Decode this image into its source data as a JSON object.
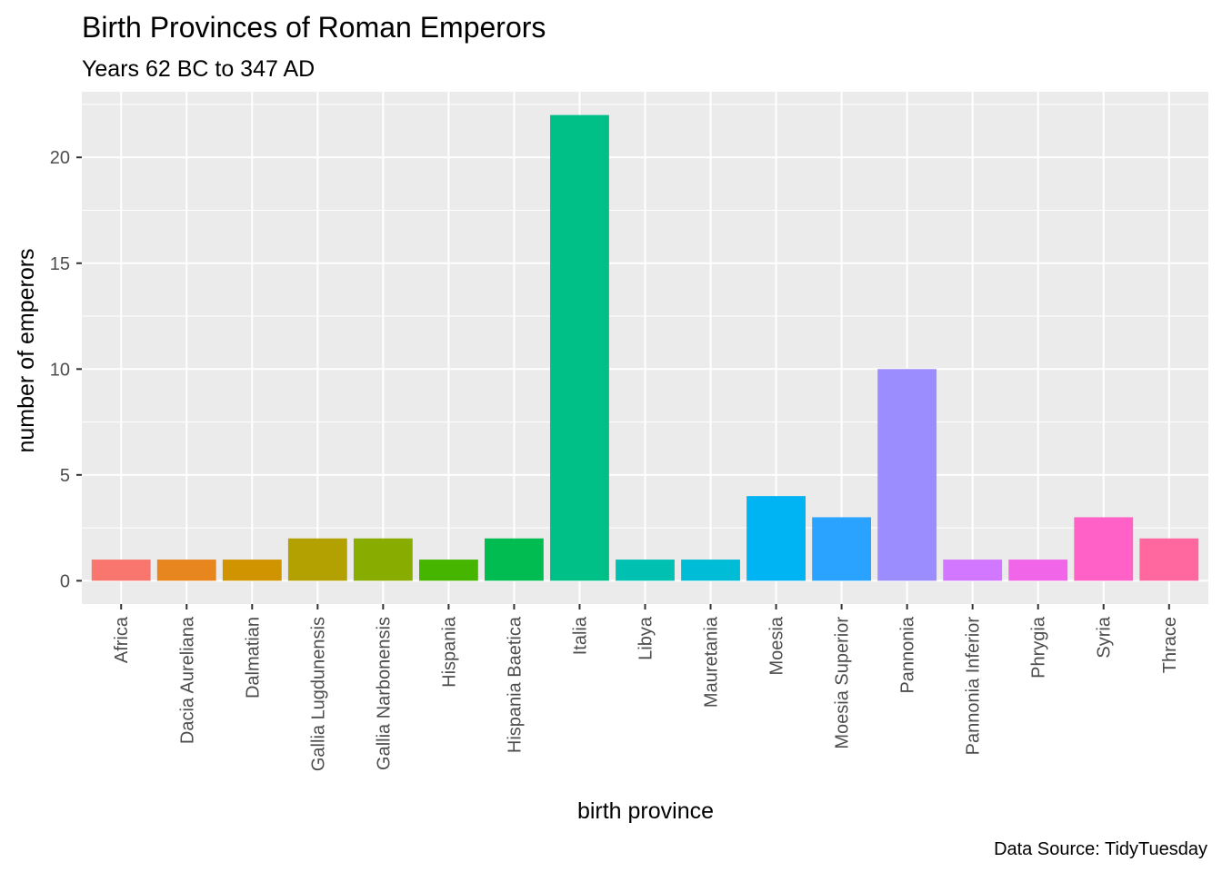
{
  "chart_data": {
    "type": "bar",
    "title": "Birth Provinces of Roman Emperors",
    "subtitle": "Years 62 BC to 347 AD",
    "xlabel": "birth province",
    "ylabel": "number of emperors",
    "caption": "Data Source: TidyTuesday",
    "categories": [
      "Africa",
      "Dacia Aureliana",
      "Dalmatian",
      "Gallia Lugdunensis",
      "Gallia Narbonensis",
      "Hispania",
      "Hispania Baetica",
      "Italia",
      "Libya",
      "Mauretania",
      "Moesia",
      "Moesia Superior",
      "Pannonia",
      "Pannonia Inferior",
      "Phrygia",
      "Syria",
      "Thrace"
    ],
    "values": [
      1,
      1,
      1,
      2,
      2,
      1,
      2,
      22,
      1,
      1,
      4,
      3,
      10,
      1,
      1,
      3,
      2
    ],
    "colors": [
      "#F8766D",
      "#E7851E",
      "#D09400",
      "#B2A100",
      "#89AC00",
      "#45B500",
      "#00BC51",
      "#00C087",
      "#00C0B2",
      "#00BCD6",
      "#00B3F2",
      "#29A3FF",
      "#9C8DFF",
      "#D277FF",
      "#F166E8",
      "#FF61C7",
      "#FF689E"
    ],
    "yticks": [
      0,
      5,
      10,
      15,
      20
    ],
    "ylim": [
      -1.1,
      23.1
    ],
    "grid": true,
    "legend": "none",
    "background": "#EBEBEB"
  }
}
